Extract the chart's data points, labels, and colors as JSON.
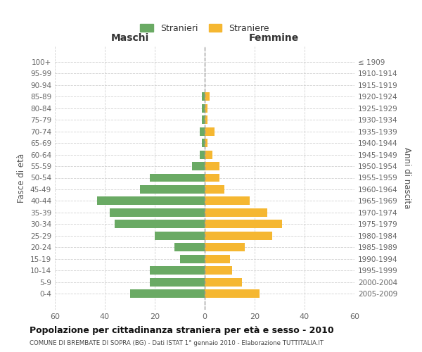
{
  "age_groups": [
    "100+",
    "95-99",
    "90-94",
    "85-89",
    "80-84",
    "75-79",
    "70-74",
    "65-69",
    "60-64",
    "55-59",
    "50-54",
    "45-49",
    "40-44",
    "35-39",
    "30-34",
    "25-29",
    "20-24",
    "15-19",
    "10-14",
    "5-9",
    "0-4"
  ],
  "birth_years": [
    "≤ 1909",
    "1910-1914",
    "1915-1919",
    "1920-1924",
    "1925-1929",
    "1930-1934",
    "1935-1939",
    "1940-1944",
    "1945-1949",
    "1950-1954",
    "1955-1959",
    "1960-1964",
    "1965-1969",
    "1970-1974",
    "1975-1979",
    "1980-1984",
    "1985-1989",
    "1990-1994",
    "1995-1999",
    "2000-2004",
    "2005-2009"
  ],
  "males": [
    0,
    0,
    0,
    1,
    1,
    1,
    2,
    1,
    2,
    5,
    22,
    26,
    43,
    38,
    36,
    20,
    12,
    10,
    22,
    22,
    30
  ],
  "females": [
    0,
    0,
    0,
    2,
    1,
    1,
    4,
    1,
    3,
    6,
    6,
    8,
    18,
    25,
    31,
    27,
    16,
    10,
    11,
    15,
    22
  ],
  "male_color": "#6aaa64",
  "female_color": "#f5b731",
  "title": "Popolazione per cittadinanza straniera per età e sesso - 2010",
  "subtitle": "COMUNE DI BREMBATE DI SOPRA (BG) - Dati ISTAT 1° gennaio 2010 - Elaborazione TUTTITALIA.IT",
  "xlabel_left": "Maschi",
  "xlabel_right": "Femmine",
  "ylabel_left": "Fasce di età",
  "ylabel_right": "Anni di nascita",
  "legend_male": "Stranieri",
  "legend_female": "Straniere",
  "xlim": 60,
  "background_color": "#ffffff",
  "grid_color": "#cccccc"
}
